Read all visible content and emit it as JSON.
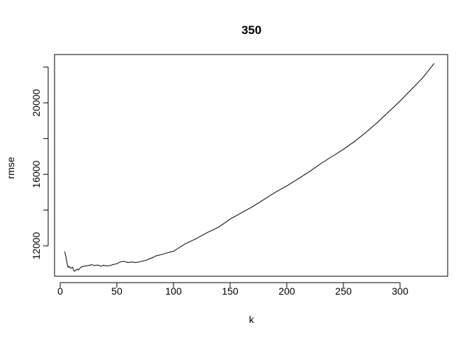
{
  "chart_data": {
    "type": "line",
    "title": "350",
    "xlabel": "k",
    "ylabel": "rmse",
    "xlim": [
      -5,
      342
    ],
    "ylim": [
      10300,
      22700
    ],
    "x_ticks": [
      0,
      50,
      100,
      150,
      200,
      250,
      300
    ],
    "x_tick_labels": [
      "0",
      "50",
      "100",
      "150",
      "200",
      "250",
      "300"
    ],
    "y_ticks": [
      12000,
      16000,
      20000
    ],
    "y_tick_labels": [
      "12000",
      "16000",
      "20000"
    ],
    "y_minor_ticks": [
      14000,
      18000,
      22000
    ],
    "grid": false,
    "legend": "none",
    "line_color": "#000000",
    "series": [
      {
        "x": [
          4,
          5,
          6,
          7,
          8,
          9,
          10,
          11,
          12,
          13,
          14,
          15,
          16,
          18,
          20,
          22,
          25,
          28,
          30,
          33,
          36,
          38,
          41,
          44,
          47,
          50,
          53,
          56,
          60,
          63,
          66,
          70,
          75,
          80,
          85,
          90,
          95,
          100,
          110,
          120,
          130,
          140,
          150,
          160,
          170,
          180,
          190,
          200,
          210,
          220,
          230,
          240,
          250,
          260,
          270,
          280,
          290,
          300,
          310,
          320,
          330
        ],
        "y": [
          11680,
          11400,
          11050,
          10800,
          10850,
          10750,
          10780,
          10800,
          10600,
          10590,
          10650,
          10700,
          10650,
          10800,
          10850,
          10870,
          10900,
          10950,
          10900,
          10930,
          10860,
          10920,
          10880,
          10900,
          10960,
          11000,
          11100,
          11130,
          11070,
          11100,
          11070,
          11100,
          11180,
          11300,
          11450,
          11520,
          11620,
          11700,
          12100,
          12400,
          12750,
          13050,
          13500,
          13850,
          14200,
          14600,
          15000,
          15350,
          15750,
          16150,
          16600,
          17000,
          17400,
          17850,
          18350,
          18900,
          19500,
          20100,
          20750,
          21400,
          22200
        ]
      }
    ]
  }
}
